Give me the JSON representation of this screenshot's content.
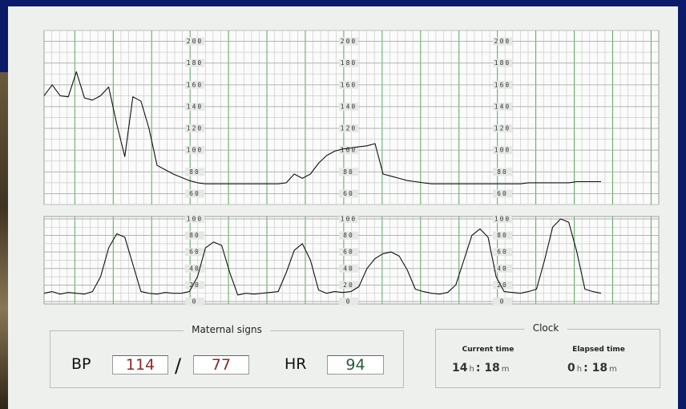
{
  "chart_data": [
    {
      "type": "line",
      "series": [
        {
          "color": "#111111",
          "values": [
            150,
            160,
            150,
            149,
            172,
            148,
            146,
            150,
            158,
            124,
            94,
            149,
            145,
            120,
            86,
            82,
            78,
            75,
            72,
            70,
            69,
            69,
            69,
            69,
            69,
            69,
            69,
            69,
            69,
            69,
            70,
            78,
            74,
            78,
            88,
            95,
            99,
            101,
            102,
            103,
            104,
            106,
            78,
            76,
            74,
            72,
            71,
            70,
            69,
            69,
            69,
            69,
            69,
            69,
            69,
            69,
            69,
            69,
            69,
            69,
            70,
            70,
            70,
            70,
            70,
            70,
            71,
            71,
            71,
            71
          ]
        }
      ],
      "ylim": [
        50,
        210
      ],
      "yticks": [
        60,
        80,
        100,
        120,
        140,
        160,
        180,
        200
      ],
      "grid": true
    },
    {
      "type": "line",
      "series": [
        {
          "color": "#111111",
          "values": [
            10,
            12,
            9,
            11,
            10,
            9,
            12,
            30,
            65,
            82,
            78,
            45,
            12,
            10,
            9,
            11,
            10,
            10,
            12,
            30,
            65,
            72,
            68,
            35,
            8,
            10,
            9,
            10,
            11,
            12,
            35,
            62,
            70,
            50,
            14,
            10,
            12,
            11,
            12,
            18,
            40,
            52,
            58,
            60,
            55,
            38,
            15,
            12,
            10,
            9,
            11,
            20,
            50,
            80,
            88,
            78,
            30,
            12,
            11,
            10,
            12,
            15,
            50,
            90,
            100,
            96,
            60,
            15,
            12,
            10
          ]
        }
      ],
      "ylim": [
        0,
        100
      ],
      "yticks": [
        0,
        20,
        40,
        60,
        80,
        100
      ],
      "grid": true
    }
  ],
  "maternal_signs": {
    "title": "Maternal signs",
    "bp_label": "BP",
    "systolic": 114,
    "separator": "/",
    "diastolic": 77,
    "hr_label": "HR",
    "hr": 94
  },
  "clock": {
    "title": "Clock",
    "current": {
      "label": "Current time",
      "hours": 14,
      "hour_unit": "h",
      "separator": ":",
      "minutes": 18,
      "minute_unit": "m"
    },
    "elapsed": {
      "label": "Elapsed time",
      "hours": 0,
      "hour_unit": "h",
      "separator": ":",
      "minutes": 18,
      "minute_unit": "m"
    }
  }
}
